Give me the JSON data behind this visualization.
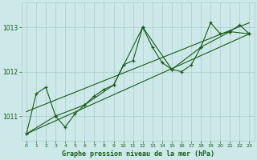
{
  "title": "Graphe pression niveau de la mer (hPa)",
  "bg_color": "#cce8e8",
  "grid_color": "#aacccc",
  "line_color": "#1a5c1a",
  "xlim": [
    -0.5,
    23.5
  ],
  "ylim": [
    1010.45,
    1013.55
  ],
  "yticks": [
    1011,
    1012,
    1013
  ],
  "xticks": [
    0,
    1,
    2,
    3,
    4,
    5,
    6,
    7,
    8,
    9,
    10,
    11,
    12,
    13,
    14,
    15,
    16,
    17,
    18,
    19,
    20,
    21,
    22,
    23
  ],
  "series_main": {
    "x": [
      0,
      1,
      2,
      3,
      4,
      5,
      6,
      7,
      8,
      9,
      10,
      11,
      12,
      13,
      14,
      15,
      16,
      17,
      18,
      19,
      20,
      21,
      22,
      23
    ],
    "y": [
      1010.6,
      1011.5,
      1011.65,
      1011.0,
      1010.75,
      1011.05,
      1011.25,
      1011.45,
      1011.6,
      1011.7,
      1012.15,
      1012.25,
      1013.0,
      1012.55,
      1012.2,
      1012.05,
      1012.0,
      1012.15,
      1012.55,
      1013.1,
      1012.85,
      1012.9,
      1013.05,
      1012.85
    ]
  },
  "series_3h": {
    "x": [
      0,
      3,
      6,
      9,
      12,
      15,
      18,
      21,
      23
    ],
    "y": [
      1010.6,
      1011.0,
      1011.25,
      1011.7,
      1013.0,
      1012.05,
      1012.55,
      1012.9,
      1012.85
    ]
  },
  "env_line1_x": [
    0,
    23
  ],
  "env_line1_y": [
    1010.6,
    1012.85
  ],
  "env_line2_x": [
    0,
    23
  ],
  "env_line2_y": [
    1011.1,
    1013.1
  ]
}
